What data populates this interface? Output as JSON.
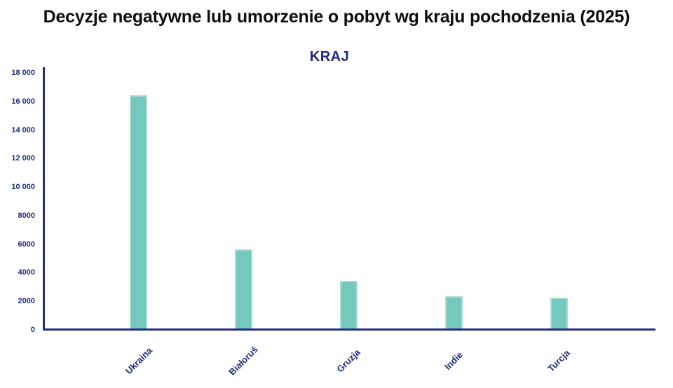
{
  "title": "Decyzje negatywne lub umorzenie o pobyt wg kraju pochodzenia (2025)",
  "chart_data": {
    "type": "bar",
    "title": "Decyzje negatywne lub umorzenie o pobyt wg kraju pochodzenia (2025)",
    "axis_title": "KRAJ",
    "categories": [
      "Ukraina",
      "Białoruś",
      "Gruzja",
      "Indie",
      "Turcja"
    ],
    "values": [
      16450,
      5630,
      3420,
      2360,
      2250
    ],
    "xlabel": "KRAJ",
    "ylabel": "",
    "ylim": [
      0,
      18000
    ],
    "grid": false,
    "legend": false,
    "y_ticks": [
      {
        "value": 0,
        "label": "0"
      },
      {
        "value": 2000,
        "label": "2000"
      },
      {
        "value": 4000,
        "label": "4000"
      },
      {
        "value": 6000,
        "label": "6000"
      },
      {
        "value": 8000,
        "label": "8000"
      },
      {
        "value": 10000,
        "label": "10 000"
      },
      {
        "value": 12000,
        "label": "12 000"
      },
      {
        "value": 14000,
        "label": "14 000"
      },
      {
        "value": 16000,
        "label": "16 000"
      },
      {
        "value": 18000,
        "label": "18 000"
      }
    ],
    "colors": {
      "background": "#ffffff",
      "title_text": "#0e0e0e",
      "axis_title_text": "#1e2680",
      "tick_text": "#1f2c7e",
      "axis_line": "#262d80",
      "bar_fill": "#74c8bc",
      "bar_border": "#abdcd5"
    }
  }
}
